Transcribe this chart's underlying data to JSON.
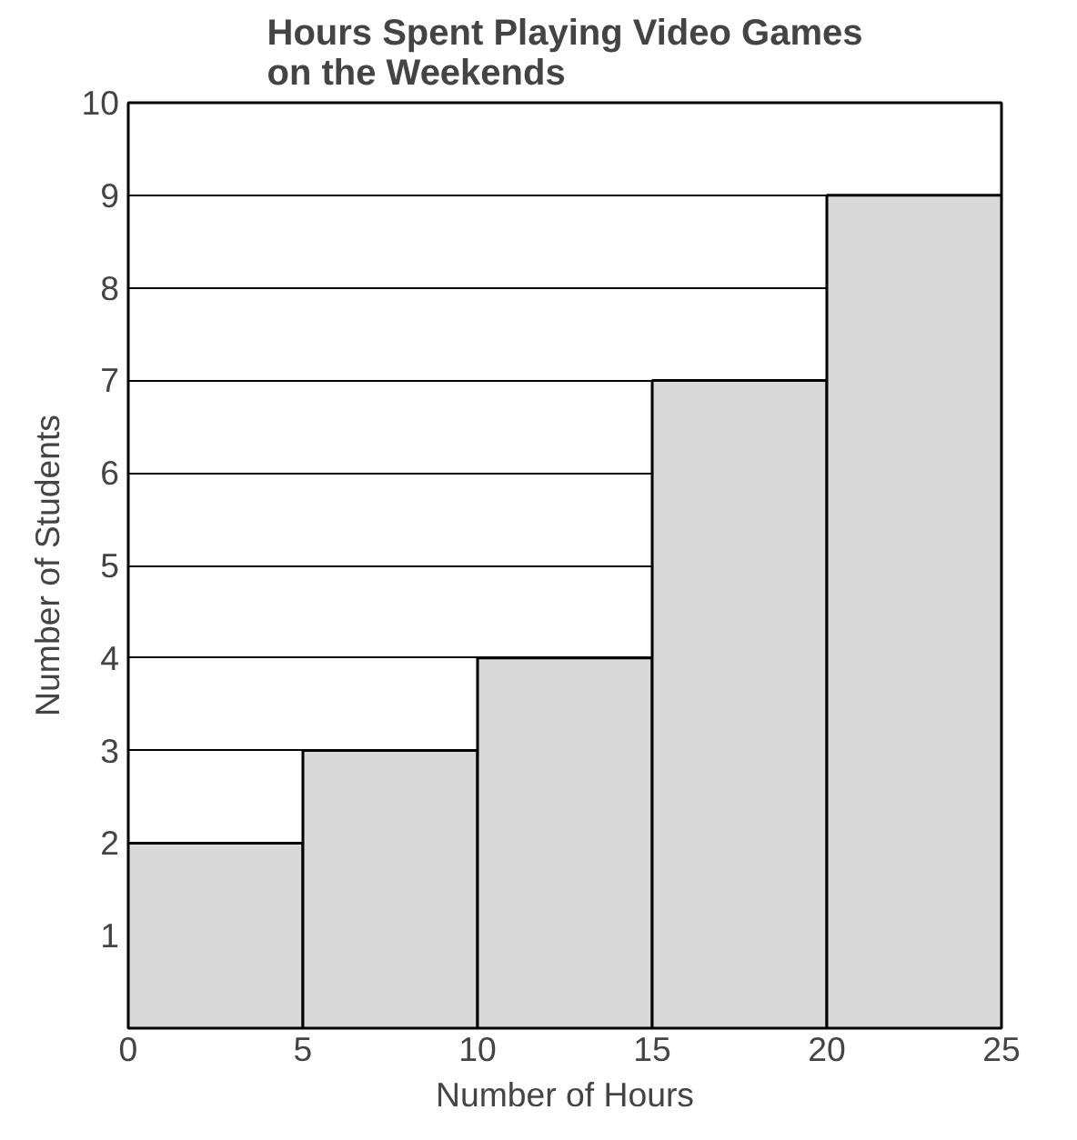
{
  "chart_data": {
    "type": "histogram",
    "title": "Hours Spent Playing Video Games\non the Weekends",
    "xlabel": "Number of Hours",
    "ylabel": "Number of Students",
    "bins": [
      0,
      5,
      10,
      15,
      20,
      25
    ],
    "values": [
      2,
      3,
      4,
      7,
      9
    ],
    "color": "#d9d9d9",
    "xlim": [
      0,
      25
    ],
    "xticks": [
      0,
      5,
      10,
      15,
      20,
      25
    ],
    "ylim": [
      0,
      10
    ],
    "yticks": [
      1,
      2,
      3,
      4,
      5,
      6,
      7,
      8,
      9,
      10
    ],
    "grid": "y"
  }
}
